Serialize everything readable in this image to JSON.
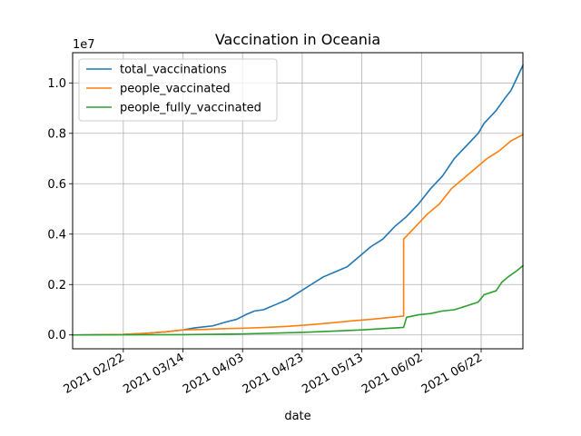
{
  "chart_data": {
    "type": "line",
    "title": "Vaccination in Oceania",
    "xlabel": "date",
    "ylabel": "",
    "y_scale_label": "1e7",
    "grid": true,
    "legend_placement": "upper-left",
    "xlim": [
      "2021-02-05",
      "2021-07-06"
    ],
    "ylim": [
      -0.055,
      1.12
    ],
    "x_ticks": [
      {
        "date": "2021-02-22",
        "label": "2021 02/22"
      },
      {
        "date": "2021-03-14",
        "label": "2021 03/14"
      },
      {
        "date": "2021-04-03",
        "label": "2021 04/03"
      },
      {
        "date": "2021-04-23",
        "label": "2021 04/23"
      },
      {
        "date": "2021-05-13",
        "label": "2021 05/13"
      },
      {
        "date": "2021-06-02",
        "label": "2021 06/02"
      },
      {
        "date": "2021-06-22",
        "label": "2021 06/22"
      }
    ],
    "y_ticks": [
      {
        "value": 0.0,
        "label": "0.0"
      },
      {
        "value": 0.2,
        "label": "0.2"
      },
      {
        "value": 0.4,
        "label": "0.4"
      },
      {
        "value": 0.6,
        "label": "0.6"
      },
      {
        "value": 0.8,
        "label": "0.8"
      },
      {
        "value": 1.0,
        "label": "1.0"
      }
    ],
    "series": [
      {
        "name": "total_vaccinations",
        "color": "#1f77b4",
        "points": [
          [
            "2021-02-05",
            0.0
          ],
          [
            "2021-02-22",
            0.002
          ],
          [
            "2021-03-01",
            0.006
          ],
          [
            "2021-03-08",
            0.012
          ],
          [
            "2021-03-14",
            0.02
          ],
          [
            "2021-03-18",
            0.028
          ],
          [
            "2021-03-24",
            0.036
          ],
          [
            "2021-03-28",
            0.05
          ],
          [
            "2021-04-01",
            0.062
          ],
          [
            "2021-04-04",
            0.08
          ],
          [
            "2021-04-07",
            0.095
          ],
          [
            "2021-04-10",
            0.1
          ],
          [
            "2021-04-14",
            0.12
          ],
          [
            "2021-04-18",
            0.14
          ],
          [
            "2021-04-22",
            0.17
          ],
          [
            "2021-04-26",
            0.2
          ],
          [
            "2021-04-30",
            0.23
          ],
          [
            "2021-05-04",
            0.25
          ],
          [
            "2021-05-08",
            0.27
          ],
          [
            "2021-05-12",
            0.31
          ],
          [
            "2021-05-16",
            0.35
          ],
          [
            "2021-05-20",
            0.38
          ],
          [
            "2021-05-24",
            0.43
          ],
          [
            "2021-05-28",
            0.47
          ],
          [
            "2021-06-01",
            0.52
          ],
          [
            "2021-06-05",
            0.58
          ],
          [
            "2021-06-09",
            0.63
          ],
          [
            "2021-06-13",
            0.7
          ],
          [
            "2021-06-17",
            0.75
          ],
          [
            "2021-06-21",
            0.8
          ],
          [
            "2021-06-23",
            0.84
          ],
          [
            "2021-06-27",
            0.89
          ],
          [
            "2021-06-30",
            0.94
          ],
          [
            "2021-07-02",
            0.97
          ],
          [
            "2021-07-04",
            1.02
          ],
          [
            "2021-07-06",
            1.07
          ]
        ]
      },
      {
        "name": "people_vaccinated",
        "color": "#ff7f0e",
        "points": [
          [
            "2021-02-05",
            0.0
          ],
          [
            "2021-02-22",
            0.002
          ],
          [
            "2021-03-01",
            0.006
          ],
          [
            "2021-03-08",
            0.012
          ],
          [
            "2021-03-14",
            0.02
          ],
          [
            "2021-03-21",
            0.022
          ],
          [
            "2021-03-28",
            0.025
          ],
          [
            "2021-04-04",
            0.027
          ],
          [
            "2021-04-11",
            0.03
          ],
          [
            "2021-04-18",
            0.034
          ],
          [
            "2021-04-25",
            0.04
          ],
          [
            "2021-05-02",
            0.047
          ],
          [
            "2021-05-09",
            0.055
          ],
          [
            "2021-05-16",
            0.062
          ],
          [
            "2021-05-23",
            0.07
          ],
          [
            "2021-05-27",
            0.075
          ],
          [
            "2021-05-27",
            0.38
          ],
          [
            "2021-05-31",
            0.43
          ],
          [
            "2021-06-04",
            0.48
          ],
          [
            "2021-06-08",
            0.52
          ],
          [
            "2021-06-12",
            0.58
          ],
          [
            "2021-06-16",
            0.62
          ],
          [
            "2021-06-20",
            0.66
          ],
          [
            "2021-06-24",
            0.7
          ],
          [
            "2021-06-28",
            0.73
          ],
          [
            "2021-07-02",
            0.77
          ],
          [
            "2021-07-06",
            0.795
          ]
        ]
      },
      {
        "name": "people_fully_vaccinated",
        "color": "#2ca02c",
        "points": [
          [
            "2021-02-05",
            0.0
          ],
          [
            "2021-03-14",
            0.001
          ],
          [
            "2021-04-03",
            0.004
          ],
          [
            "2021-04-23",
            0.01
          ],
          [
            "2021-05-13",
            0.02
          ],
          [
            "2021-05-27",
            0.03
          ],
          [
            "2021-05-28",
            0.07
          ],
          [
            "2021-06-01",
            0.08
          ],
          [
            "2021-06-05",
            0.085
          ],
          [
            "2021-06-09",
            0.095
          ],
          [
            "2021-06-13",
            0.1
          ],
          [
            "2021-06-17",
            0.115
          ],
          [
            "2021-06-21",
            0.13
          ],
          [
            "2021-06-23",
            0.16
          ],
          [
            "2021-06-27",
            0.175
          ],
          [
            "2021-06-29",
            0.21
          ],
          [
            "2021-07-01",
            0.23
          ],
          [
            "2021-07-04",
            0.255
          ],
          [
            "2021-07-06",
            0.275
          ]
        ]
      }
    ]
  }
}
